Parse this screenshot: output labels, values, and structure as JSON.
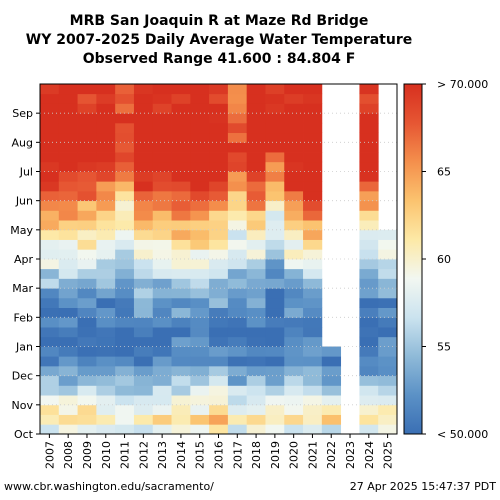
{
  "chart_data": {
    "type": "heatmap",
    "title_lines": [
      "MRB San Joaquin R at Maze Rd Bridge",
      "WY 2007-2025 Daily Average Water Temperature",
      "Observed Range 41.600 : 84.804 F"
    ],
    "x_categories": [
      "2007",
      "2008",
      "2009",
      "2010",
      "2011",
      "2012",
      "2013",
      "2014",
      "2015",
      "2016",
      "2017",
      "2018",
      "2019",
      "2020",
      "2021",
      "2022",
      "2023",
      "2024",
      "2025"
    ],
    "y_ticks": [
      "Oct",
      "Nov",
      "Dec",
      "Jan",
      "Feb",
      "Mar",
      "Apr",
      "May",
      "Jun",
      "Jul",
      "Aug",
      "Sep"
    ],
    "colorbar": {
      "min": 50,
      "max": 70,
      "tick_labels": [
        "< 50.000",
        "55",
        "60",
        "65",
        "> 70.000"
      ],
      "tick_values": [
        50,
        55,
        60,
        65,
        70
      ],
      "colors": [
        "#3a6fb4",
        "#5b91c6",
        "#8fbad8",
        "#cbe3ef",
        "#f2f7f1",
        "#fde9a6",
        "#fbc36f",
        "#f48f4c",
        "#e65633",
        "#d7301f"
      ]
    },
    "data_range_end": {
      "2022": 3,
      "2023": 0,
      "2024": 12,
      "2025": 7
    },
    "monthly_means": {
      "2007": [
        62,
        57,
        52,
        51,
        52,
        56,
        60,
        64,
        69,
        72,
        72,
        70
      ],
      "2008": [
        61,
        56,
        51,
        50,
        52,
        56,
        59,
        64,
        68,
        72,
        72,
        70
      ],
      "2009": [
        62,
        56,
        52,
        50,
        52,
        55,
        60,
        63,
        68,
        72,
        72,
        69
      ],
      "2010": [
        61,
        56,
        51,
        50,
        51,
        55,
        58,
        62,
        66,
        71,
        72,
        70
      ],
      "2011": [
        60,
        56,
        51,
        50,
        51,
        54,
        57,
        60,
        63,
        68,
        70,
        67
      ],
      "2012": [
        61,
        56,
        52,
        51,
        53,
        56,
        60,
        64,
        69,
        72,
        72,
        70
      ],
      "2013": [
        62,
        57,
        52,
        50,
        52,
        56,
        61,
        65,
        70,
        72,
        72,
        70
      ],
      "2014": [
        62,
        57,
        53,
        51,
        53,
        57,
        61,
        66,
        70,
        73,
        73,
        70
      ],
      "2015": [
        62,
        57,
        53,
        52,
        54,
        57,
        61,
        65,
        70,
        73,
        73,
        70
      ],
      "2016": [
        63,
        58,
        53,
        51,
        53,
        56,
        60,
        64,
        69,
        72,
        72,
        70
      ],
      "2017": [
        60,
        56,
        51,
        50,
        51,
        55,
        57,
        59,
        64,
        69,
        68,
        66
      ],
      "2018": [
        62,
        56,
        52,
        50,
        52,
        55,
        59,
        63,
        68,
        72,
        72,
        70
      ],
      "2019": [
        60,
        56,
        51,
        50,
        50,
        53,
        57,
        59,
        63,
        68,
        71,
        70
      ],
      "2020": [
        61,
        57,
        52,
        51,
        52,
        56,
        60,
        64,
        69,
        72,
        72,
        71
      ],
      "2021": [
        62,
        57,
        52,
        50,
        52,
        57,
        61,
        66,
        71,
        73,
        73,
        71
      ],
      "2022": [
        62,
        56,
        51,
        52,
        0,
        0,
        0,
        0,
        0,
        0,
        0,
        0
      ],
      "2023": [
        0,
        0,
        0,
        0,
        0,
        0,
        0,
        0,
        0,
        0,
        0,
        0
      ],
      "2024": [
        60,
        55,
        51,
        50,
        51,
        54,
        58,
        62,
        67,
        71,
        72,
        70
      ],
      "2025": [
        61,
        56,
        52,
        51,
        52,
        56,
        58,
        62,
        0,
        0,
        0,
        0
      ]
    }
  },
  "footer": {
    "source": "www.cbr.washington.edu/sacramento/",
    "timestamp": "27 Apr 2025 15:47:37 PDT"
  }
}
